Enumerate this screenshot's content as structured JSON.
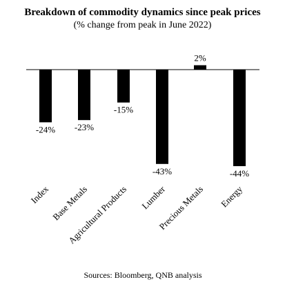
{
  "chart_data": {
    "type": "bar",
    "title": "Breakdown of commodity dynamics since peak prices",
    "subtitle": "(% change from peak in June 2022)",
    "categories": [
      "Index",
      "Base Metals",
      "Agricultural Products",
      "Lumber",
      "Precious Metals",
      "Energy"
    ],
    "values": [
      -24,
      -23,
      -15,
      -43,
      2,
      -44
    ],
    "data_labels": [
      "-24%",
      "-23%",
      "-15%",
      "-43%",
      "2%",
      "-44%"
    ],
    "xlabel": "",
    "ylabel": "",
    "ylim": [
      -44,
      2
    ],
    "grid": false,
    "legend": "none",
    "bar_color": "#000000",
    "source": "Sources: Bloomberg, QNB analysis"
  }
}
